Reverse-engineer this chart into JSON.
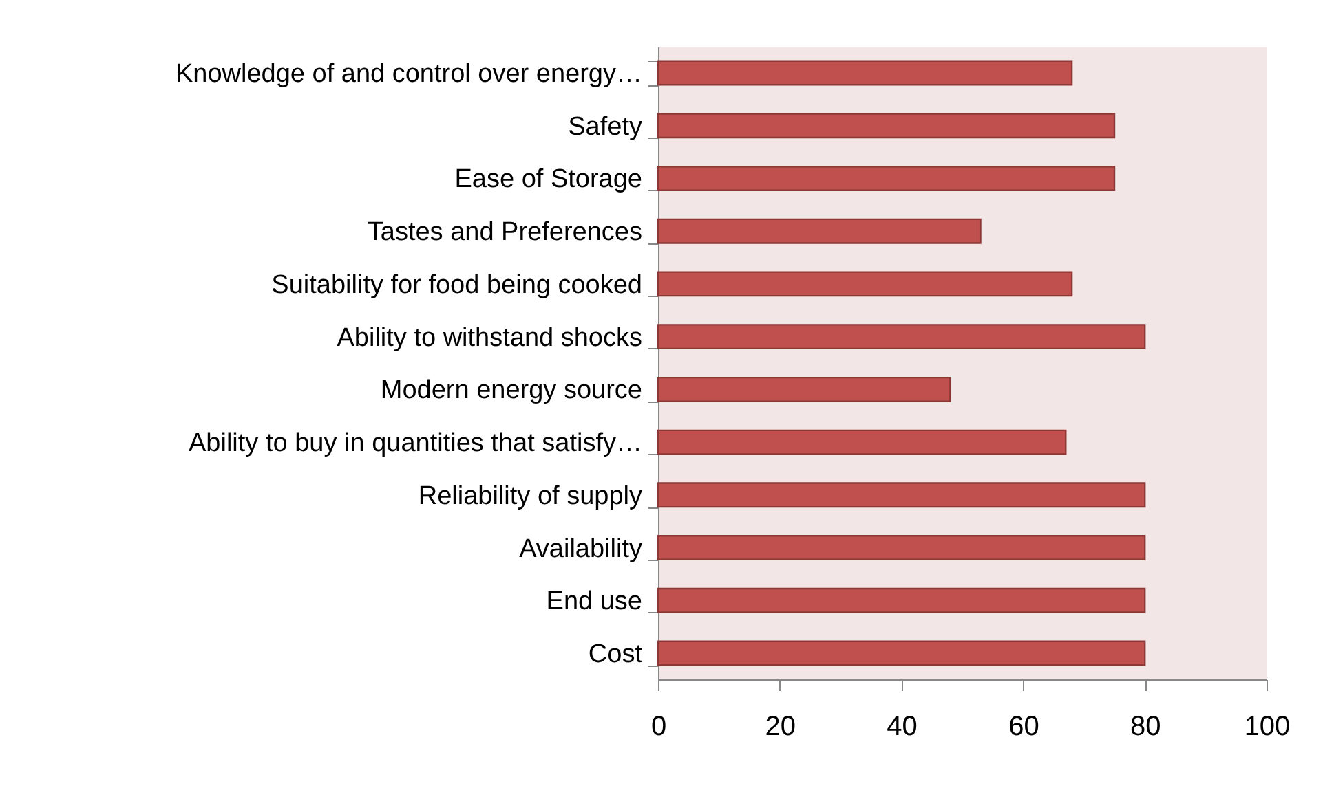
{
  "chart_data": {
    "type": "bar",
    "orientation": "horizontal",
    "categories": [
      "Knowledge of and control over energy…",
      "Safety",
      "Ease of Storage",
      "Tastes and Preferences",
      "Suitability for food being cooked",
      "Ability to withstand shocks",
      "Modern energy source",
      "Ability to buy in quantities that satisfy…",
      "Reliability of supply",
      "Availability",
      "End use",
      "Cost"
    ],
    "values": [
      68,
      75,
      75,
      53,
      68,
      80,
      48,
      67,
      80,
      80,
      80,
      80
    ],
    "color": "#c0504d",
    "xlim": [
      0,
      100
    ],
    "xticks": [
      0,
      20,
      40,
      60,
      80,
      100
    ],
    "grid": false
  }
}
